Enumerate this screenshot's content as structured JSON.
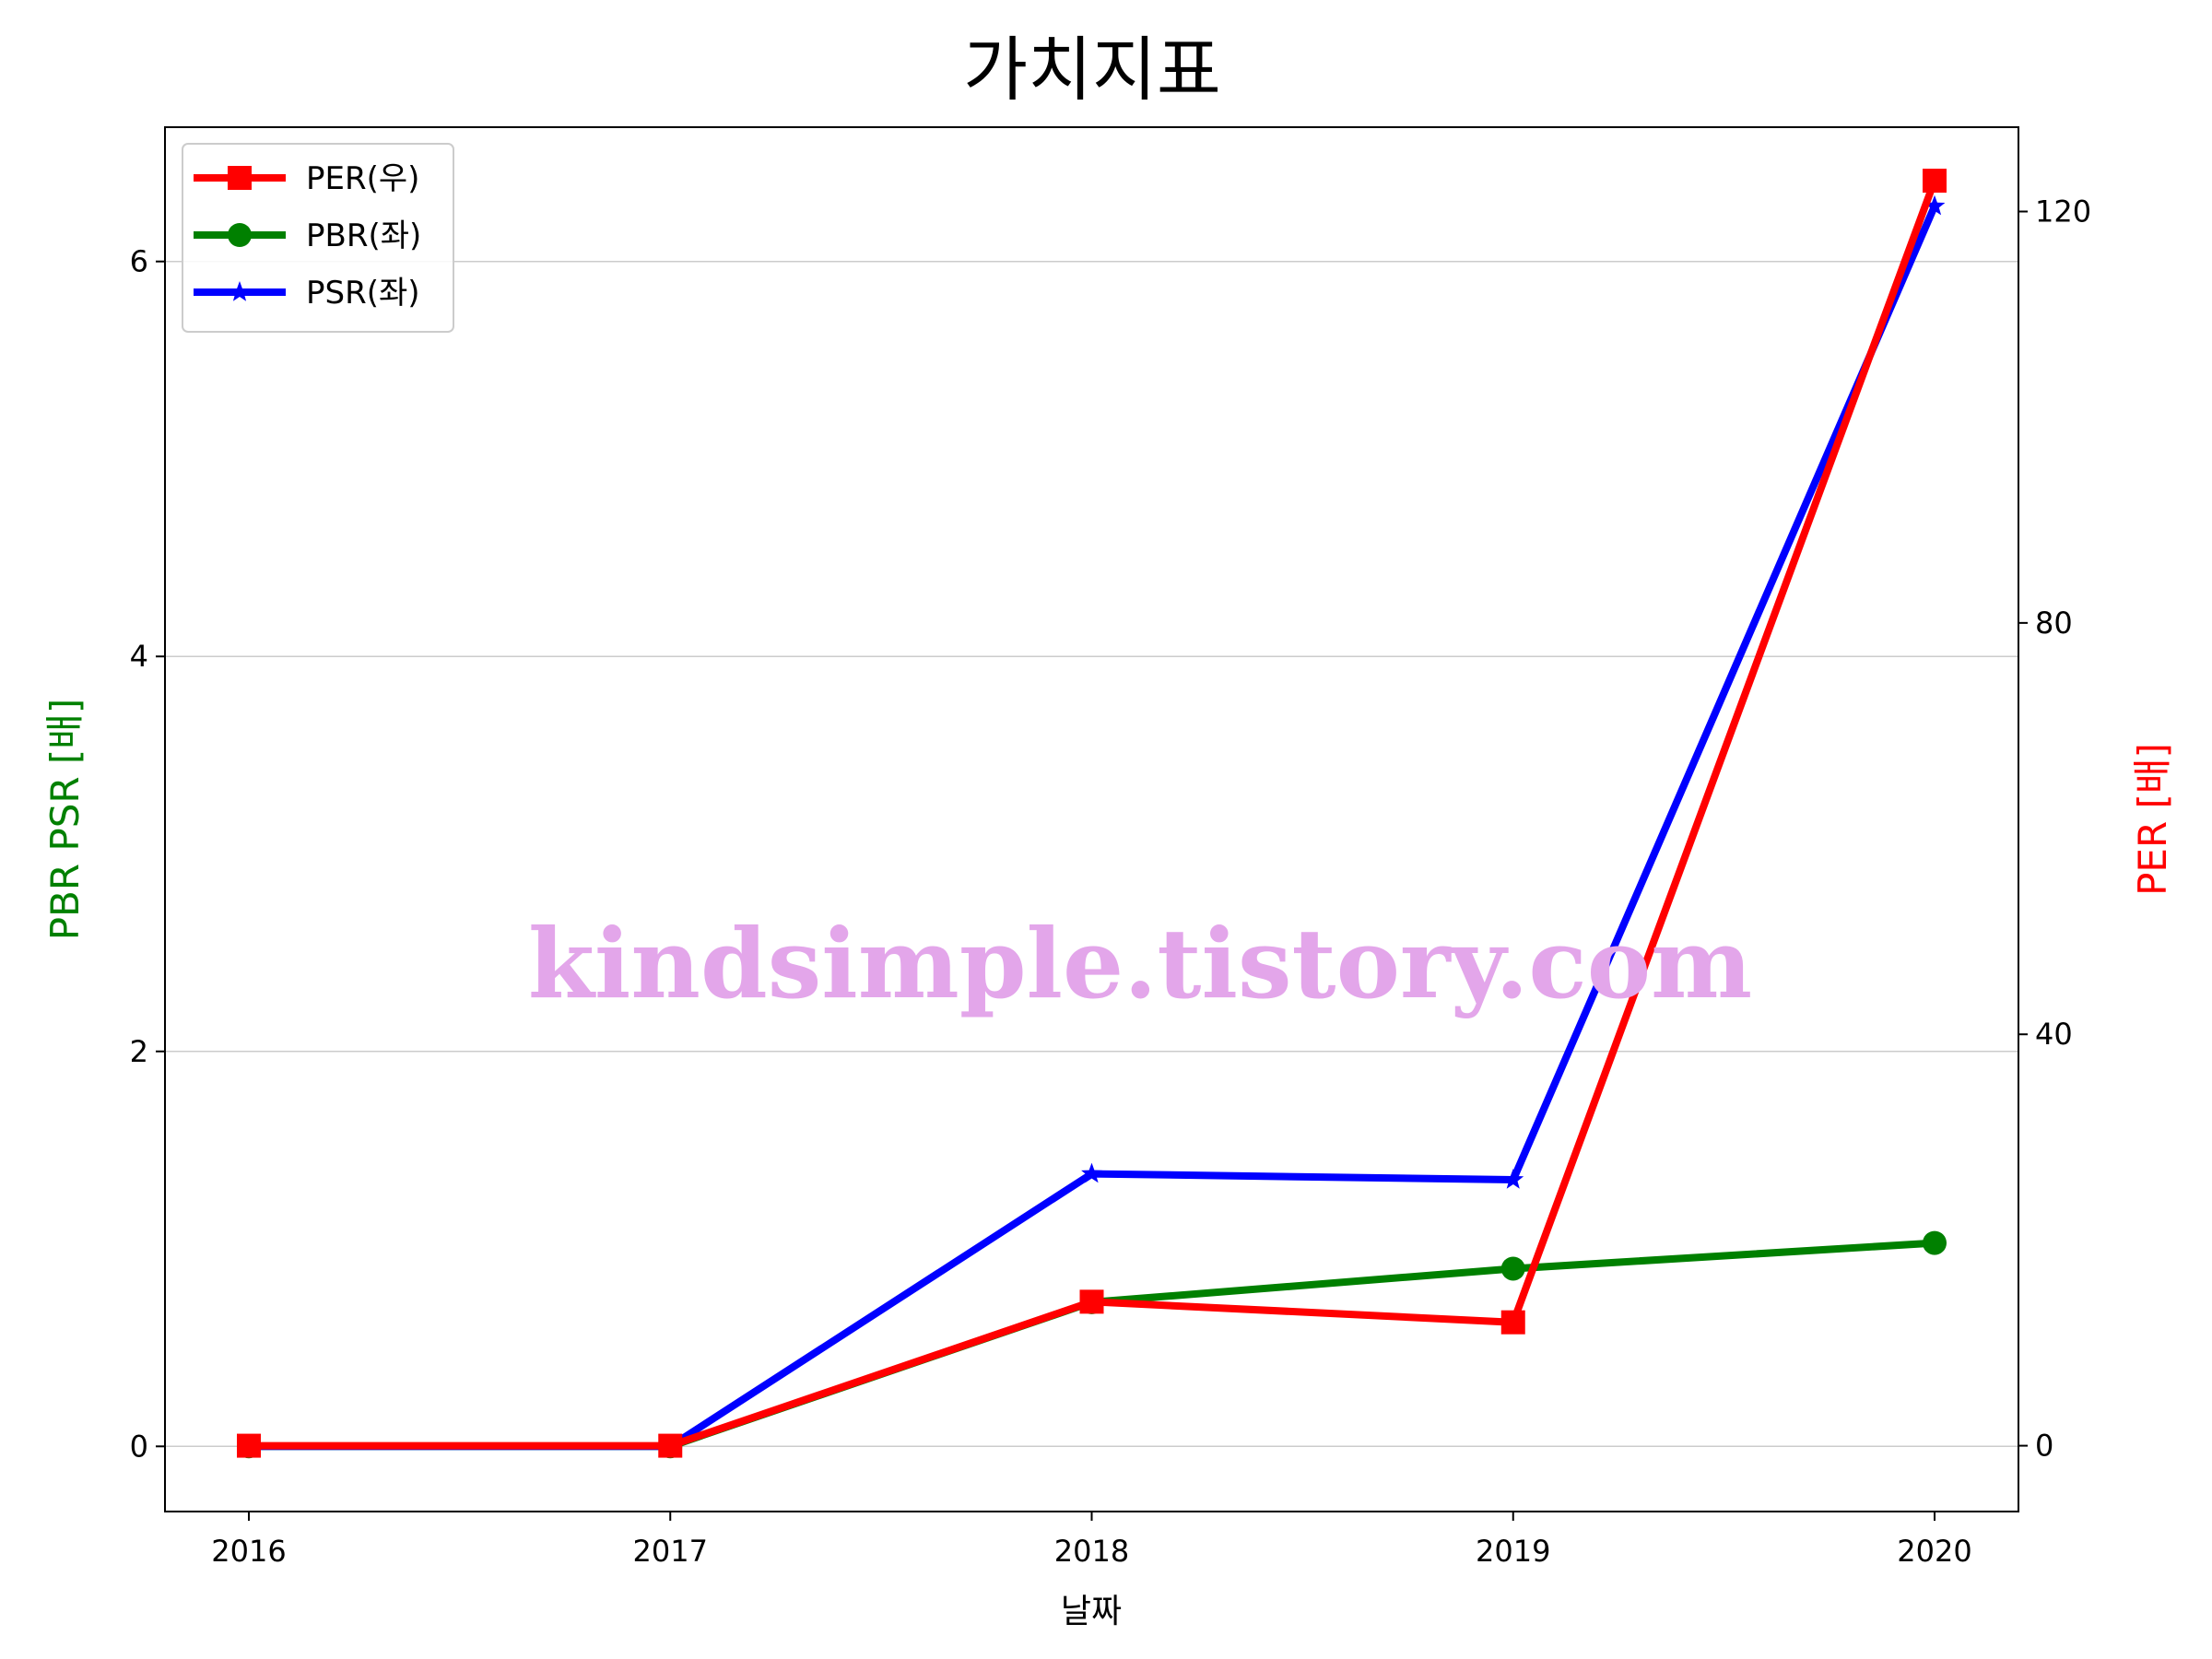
{
  "chart_data": {
    "type": "line",
    "title": "가치지표",
    "xlabel": "날짜",
    "ylabel_left": "PBR PSR [배]",
    "ylabel_right": "PER [배]",
    "categories": [
      "2016",
      "2017",
      "2018",
      "2019",
      "2020"
    ],
    "y_left_ticks": [
      0,
      2,
      4,
      6
    ],
    "y_right_ticks": [
      0,
      40,
      80,
      120
    ],
    "ylim_left": [
      -0.33,
      6.68
    ],
    "ylim_right": [
      -6.4,
      128.2
    ],
    "grid": "horizontal",
    "legend_position": "top-left",
    "watermark": "kindsimple.tistory.com",
    "series": [
      {
        "name": "PER(우)",
        "axis": "right",
        "color": "#ff0000",
        "marker": "square",
        "values": [
          0,
          0,
          14.0,
          12.0,
          123.0
        ]
      },
      {
        "name": "PBR(좌)",
        "axis": "left",
        "color": "#008000",
        "marker": "circle",
        "values": [
          0,
          0,
          0.73,
          0.9,
          1.03
        ]
      },
      {
        "name": "PSR(좌)",
        "axis": "left",
        "color": "#0000ff",
        "marker": "star",
        "values": [
          0,
          0,
          1.38,
          1.35,
          6.28
        ]
      }
    ],
    "colors": {
      "left_axis_label": "#008000",
      "right_axis_label": "#ff0000",
      "grid": "#cccccc"
    }
  }
}
